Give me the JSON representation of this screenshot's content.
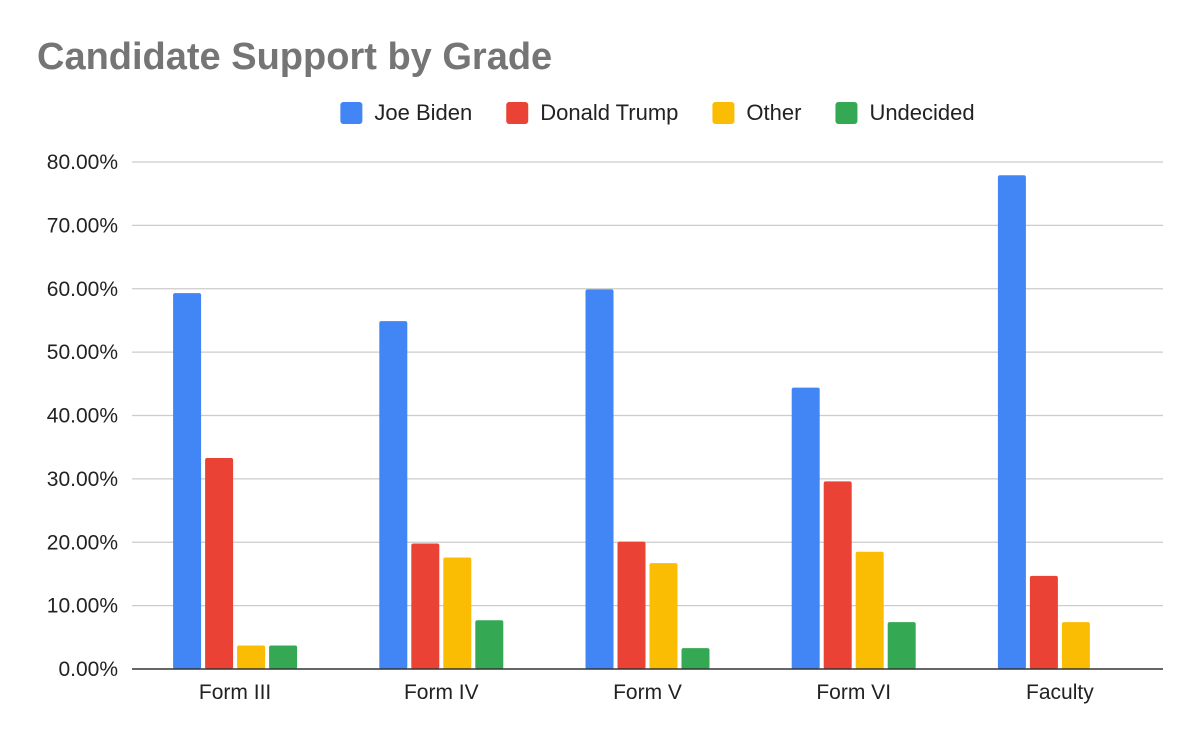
{
  "chart_data": {
    "type": "bar",
    "title": "Candidate Support by Grade",
    "xlabel": "",
    "ylabel": "",
    "categories": [
      "Form III",
      "Form IV",
      "Form V",
      "Form VI",
      "Faculty"
    ],
    "series": [
      {
        "name": "Joe Biden",
        "color": "#4285f4",
        "values": [
          59.3,
          54.9,
          59.9,
          44.4,
          77.9
        ]
      },
      {
        "name": "Donald Trump",
        "color": "#ea4335",
        "values": [
          33.3,
          19.8,
          20.1,
          29.6,
          14.7
        ]
      },
      {
        "name": "Other",
        "color": "#fbbc04",
        "values": [
          3.7,
          17.6,
          16.7,
          18.5,
          7.4
        ]
      },
      {
        "name": "Undecided",
        "color": "#34a853",
        "values": [
          3.7,
          7.7,
          3.3,
          7.4,
          0
        ]
      }
    ],
    "ylim": [
      0,
      80
    ],
    "yticks": [
      0,
      10,
      20,
      30,
      40,
      50,
      60,
      70,
      80
    ],
    "ytick_labels": [
      "0.00%",
      "10.00%",
      "20.00%",
      "30.00%",
      "40.00%",
      "50.00%",
      "60.00%",
      "70.00%",
      "80.00%"
    ],
    "grid": true,
    "legend_position": "top-center"
  }
}
